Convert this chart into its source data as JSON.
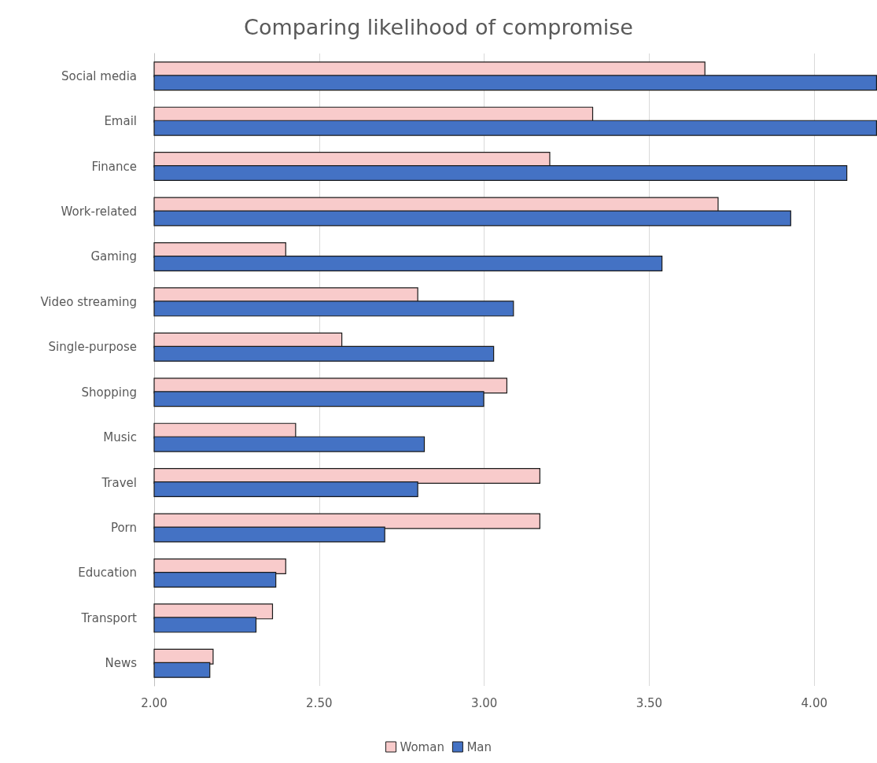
{
  "chart_data": {
    "type": "bar",
    "orientation": "horizontal",
    "title": "Comparing likelihood of compromise",
    "categories": [
      "Social media",
      "Email",
      "Finance",
      "Work-related",
      "Gaming",
      "Video streaming",
      "Single-purpose",
      "Shopping",
      "Music",
      "Travel",
      "Porn",
      "Education",
      "Transport",
      "News"
    ],
    "series": [
      {
        "name": "Woman",
        "color": "#f8cbcb",
        "values": [
          3.67,
          3.33,
          3.2,
          3.71,
          2.4,
          2.8,
          2.57,
          3.07,
          2.43,
          3.17,
          3.17,
          2.4,
          2.36,
          2.18
        ]
      },
      {
        "name": "Man",
        "color": "#4472c4",
        "values": [
          4.19,
          4.19,
          4.1,
          3.93,
          3.54,
          3.09,
          3.03,
          3.0,
          2.82,
          2.8,
          2.7,
          2.37,
          2.31,
          2.17
        ]
      }
    ],
    "xlim": [
      2,
      4.19
    ],
    "xticks": [
      {
        "value": 2,
        "label": "2.00"
      },
      {
        "value": 2.5,
        "label": "2.50"
      },
      {
        "value": 3,
        "label": "3.00"
      },
      {
        "value": 3.5,
        "label": "3.50"
      },
      {
        "value": 4,
        "label": "4.00"
      }
    ],
    "grid": "x",
    "legend": "bottom"
  }
}
